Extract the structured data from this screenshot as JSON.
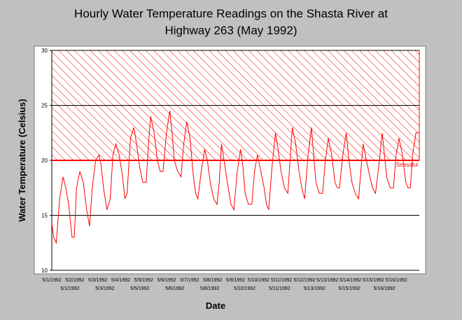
{
  "chart_data": {
    "type": "line",
    "title_line1": "Hourly Water Temperature Readings on the Shasta River at",
    "title_line2": "Highway 263 (May 1992)",
    "xlabel": "Date",
    "ylabel": "Water Temperature (Celsius)",
    "ylim": [
      10,
      30
    ],
    "y_ticks": [
      10,
      15,
      20,
      25,
      30
    ],
    "x_tick_labels_row1": [
      "5/1/1992",
      "5/2/1992",
      "5/3/1992",
      "5/4/1992",
      "5/5/1992",
      "5/6/1992",
      "5/7/1992",
      "5/8/1992",
      "5/9/1992",
      "5/10/1992",
      "5/11/1992",
      "5/12/1992",
      "5/13/1992",
      "5/14/1992",
      "5/15/1992",
      "5/16/1992"
    ],
    "x_tick_labels_row2": [
      "5/1/1992",
      "5/3/1992",
      "5/5/1992",
      "5/6/1992",
      "5/8/1992",
      "5/10/1992",
      "5/11/1992",
      "5/13/1992",
      "5/15/1992",
      "5/16/1992"
    ],
    "grid": "horizontal",
    "threshold": {
      "label": "Stressful",
      "value": 20,
      "color": "#ff0000"
    },
    "hatched_range": [
      20,
      30
    ],
    "series": [
      {
        "color": "#ff0000",
        "x_days": [
          0.0,
          0.08,
          0.2,
          0.35,
          0.5,
          0.62,
          0.75,
          0.9,
          1.0,
          1.1,
          1.25,
          1.4,
          1.55,
          1.68,
          1.8,
          1.95,
          2.1,
          2.2,
          2.3,
          2.45,
          2.6,
          2.72,
          2.85,
          3.0,
          3.15,
          3.25,
          3.35,
          3.5,
          3.65,
          3.77,
          3.9,
          4.05,
          4.2,
          4.3,
          4.4,
          4.55,
          4.7,
          4.82,
          4.95,
          5.1,
          5.25,
          5.35,
          5.45,
          5.6,
          5.75,
          5.87,
          6.0,
          6.15,
          6.3,
          6.4,
          6.5,
          6.65,
          6.8,
          6.92,
          7.05,
          7.2,
          7.35,
          7.45,
          7.55,
          7.7,
          7.85,
          7.97,
          8.1,
          8.25,
          8.4,
          8.5,
          8.6,
          8.75,
          8.9,
          9.02,
          9.15,
          9.3,
          9.45,
          9.55,
          9.65,
          9.8,
          9.95,
          10.07,
          10.2,
          10.35,
          10.5,
          10.6,
          10.7,
          10.85,
          11.0,
          11.12,
          11.25,
          11.4,
          11.55,
          11.65,
          11.75,
          11.9,
          12.05,
          12.17,
          12.3,
          12.45,
          12.6,
          12.7,
          12.8,
          12.95,
          13.1,
          13.22,
          13.35,
          13.5,
          13.65,
          13.75,
          13.85,
          14.0,
          14.15,
          14.27,
          14.4,
          14.55,
          14.7,
          14.8,
          14.9,
          15.05,
          15.2,
          15.32,
          15.45,
          15.6,
          15.75,
          15.85,
          15.95,
          16.05,
          16.2,
          16.32
        ],
        "values": [
          14.3,
          13.0,
          12.5,
          16.5,
          18.5,
          17.5,
          16.0,
          13.0,
          13.0,
          17.5,
          19.0,
          18.0,
          15.5,
          14.0,
          17.5,
          20.0,
          20.5,
          19.5,
          17.5,
          15.5,
          16.5,
          20.5,
          21.5,
          20.5,
          18.5,
          16.5,
          17.0,
          22.0,
          23.0,
          21.5,
          19.5,
          18.0,
          18.0,
          21.5,
          24.0,
          22.5,
          20.0,
          19.0,
          19.0,
          22.5,
          24.5,
          22.5,
          20.0,
          19.0,
          18.5,
          21.5,
          23.5,
          22.0,
          18.5,
          17.0,
          16.5,
          19.0,
          21.0,
          20.0,
          18.0,
          16.5,
          16.0,
          18.0,
          21.5,
          19.5,
          17.5,
          16.0,
          15.5,
          19.0,
          21.0,
          19.5,
          17.0,
          16.0,
          16.0,
          19.0,
          20.5,
          19.0,
          17.5,
          16.0,
          15.5,
          19.5,
          22.5,
          21.0,
          19.0,
          17.5,
          17.0,
          20.0,
          23.0,
          21.5,
          19.0,
          17.5,
          16.5,
          20.5,
          23.0,
          20.5,
          18.0,
          17.0,
          17.0,
          20.0,
          22.0,
          20.5,
          18.0,
          17.5,
          17.5,
          20.5,
          22.5,
          20.0,
          18.0,
          17.0,
          16.5,
          19.0,
          21.5,
          20.0,
          18.5,
          17.5,
          17.0,
          19.5,
          22.5,
          20.5,
          18.5,
          17.5,
          17.5,
          20.5,
          22.0,
          20.5,
          18.0,
          17.5,
          17.5,
          20.5,
          22.5,
          22.5
        ]
      }
    ]
  }
}
